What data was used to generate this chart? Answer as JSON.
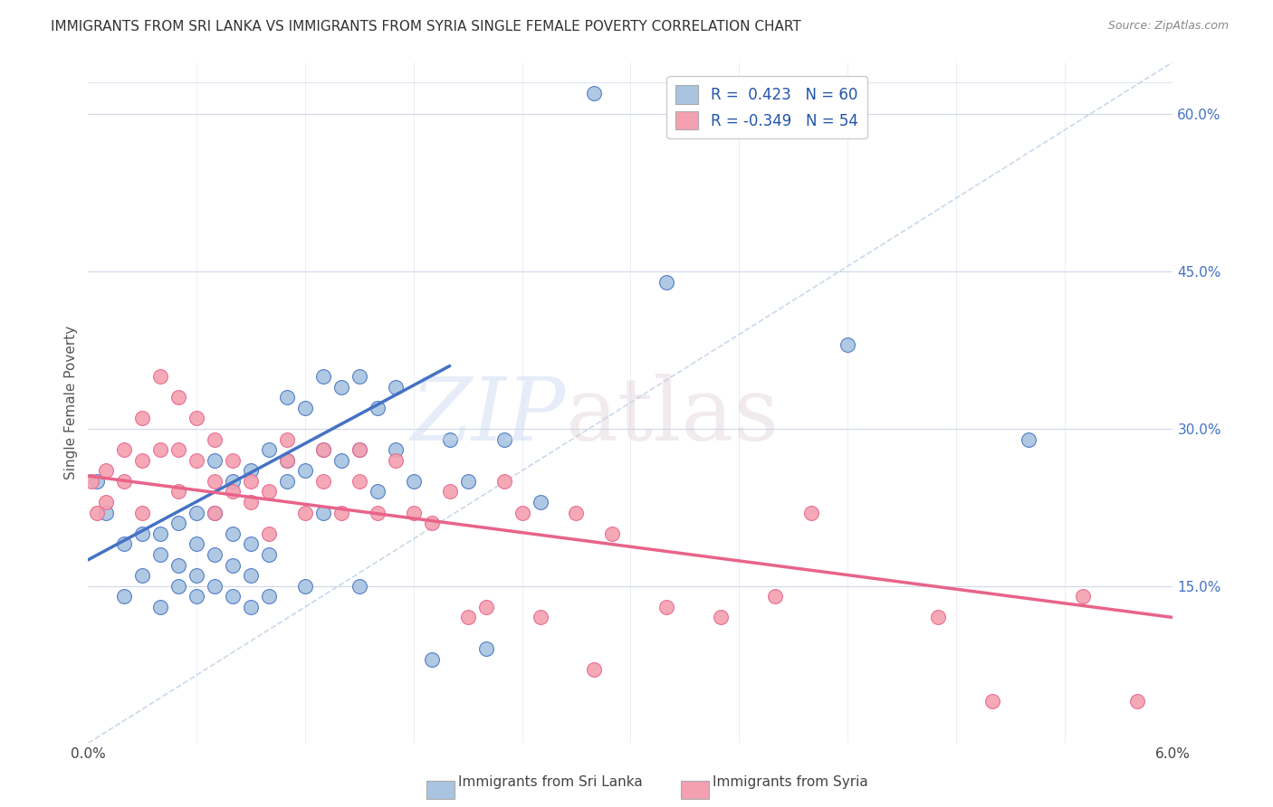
{
  "title": "IMMIGRANTS FROM SRI LANKA VS IMMIGRANTS FROM SYRIA SINGLE FEMALE POVERTY CORRELATION CHART",
  "source": "Source: ZipAtlas.com",
  "ylabel": "Single Female Poverty",
  "r_sri_lanka": 0.423,
  "n_sri_lanka": 60,
  "r_syria": -0.349,
  "n_syria": 54,
  "color_sri_lanka": "#a8c4e0",
  "color_syria": "#f4a0b0",
  "color_sri_lanka_line": "#4472C4",
  "color_syria_line": "#E8638A",
  "color_dashed": "#b8cce4",
  "xmin": 0.0,
  "xmax": 0.06,
  "ymin": 0.0,
  "ymax": 0.65,
  "right_yticks": [
    0.15,
    0.3,
    0.45,
    0.6
  ],
  "right_yticklabels": [
    "15.0%",
    "30.0%",
    "45.0%",
    "60.0%"
  ],
  "sl_trend_x": [
    0.0,
    0.02
  ],
  "sl_trend_y": [
    0.175,
    0.36
  ],
  "sy_trend_x": [
    0.0,
    0.06
  ],
  "sy_trend_y": [
    0.255,
    0.12
  ],
  "sri_lanka_x": [
    0.0005,
    0.001,
    0.002,
    0.002,
    0.003,
    0.003,
    0.004,
    0.004,
    0.004,
    0.005,
    0.005,
    0.005,
    0.006,
    0.006,
    0.006,
    0.006,
    0.007,
    0.007,
    0.007,
    0.007,
    0.008,
    0.008,
    0.008,
    0.008,
    0.009,
    0.009,
    0.009,
    0.009,
    0.01,
    0.01,
    0.01,
    0.011,
    0.011,
    0.011,
    0.012,
    0.012,
    0.012,
    0.013,
    0.013,
    0.013,
    0.014,
    0.014,
    0.015,
    0.015,
    0.015,
    0.016,
    0.016,
    0.017,
    0.017,
    0.018,
    0.019,
    0.02,
    0.021,
    0.022,
    0.023,
    0.025,
    0.028,
    0.032,
    0.042,
    0.052
  ],
  "sri_lanka_y": [
    0.25,
    0.22,
    0.19,
    0.14,
    0.2,
    0.16,
    0.18,
    0.13,
    0.2,
    0.17,
    0.15,
    0.21,
    0.19,
    0.16,
    0.22,
    0.14,
    0.15,
    0.18,
    0.22,
    0.27,
    0.14,
    0.17,
    0.2,
    0.25,
    0.13,
    0.16,
    0.19,
    0.26,
    0.14,
    0.18,
    0.28,
    0.25,
    0.33,
    0.27,
    0.15,
    0.32,
    0.26,
    0.35,
    0.28,
    0.22,
    0.34,
    0.27,
    0.35,
    0.28,
    0.15,
    0.32,
    0.24,
    0.34,
    0.28,
    0.25,
    0.08,
    0.29,
    0.25,
    0.09,
    0.29,
    0.23,
    0.62,
    0.44,
    0.38,
    0.29
  ],
  "syria_x": [
    0.0002,
    0.0005,
    0.001,
    0.001,
    0.002,
    0.002,
    0.003,
    0.003,
    0.003,
    0.004,
    0.004,
    0.005,
    0.005,
    0.005,
    0.006,
    0.006,
    0.007,
    0.007,
    0.007,
    0.008,
    0.008,
    0.009,
    0.009,
    0.01,
    0.01,
    0.011,
    0.011,
    0.012,
    0.013,
    0.013,
    0.014,
    0.015,
    0.015,
    0.016,
    0.017,
    0.018,
    0.019,
    0.02,
    0.021,
    0.022,
    0.023,
    0.024,
    0.025,
    0.027,
    0.028,
    0.029,
    0.032,
    0.035,
    0.038,
    0.04,
    0.047,
    0.05,
    0.055,
    0.058
  ],
  "syria_y": [
    0.25,
    0.22,
    0.26,
    0.23,
    0.25,
    0.28,
    0.22,
    0.27,
    0.31,
    0.28,
    0.35,
    0.24,
    0.28,
    0.33,
    0.27,
    0.31,
    0.22,
    0.25,
    0.29,
    0.24,
    0.27,
    0.25,
    0.23,
    0.2,
    0.24,
    0.27,
    0.29,
    0.22,
    0.25,
    0.28,
    0.22,
    0.25,
    0.28,
    0.22,
    0.27,
    0.22,
    0.21,
    0.24,
    0.12,
    0.13,
    0.25,
    0.22,
    0.12,
    0.22,
    0.07,
    0.2,
    0.13,
    0.12,
    0.14,
    0.22,
    0.12,
    0.04,
    0.14,
    0.04
  ]
}
